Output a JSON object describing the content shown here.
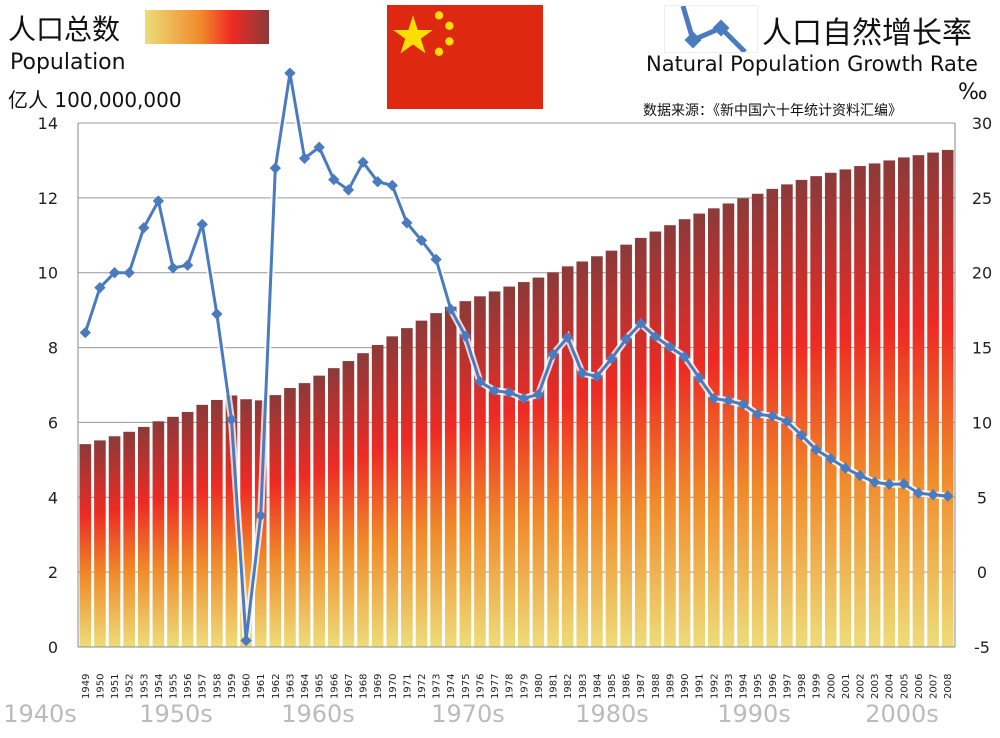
{
  "header": {
    "title_left": "人口总数",
    "population_label": "Population",
    "unit_left": "亿人 100,000,000",
    "title_right": "人口自然增长率",
    "growth_label": "Natural Population Growth Rate",
    "unit_right": "‰",
    "source": "数据来源：《新中国六十年统计资料汇编》",
    "flag_icon": "china-flag"
  },
  "colors": {
    "bar_top": "#8b3a3a",
    "bar_mid": "#ee2a24",
    "bar_bottom": "#eedc7a",
    "line": "#4a7bbf",
    "flag_red": "#de2910",
    "flag_star": "#ffde00"
  },
  "chart_data": {
    "type": "bar+line",
    "categories": [
      "1949",
      "1950",
      "1951",
      "1952",
      "1953",
      "1954",
      "1955",
      "1956",
      "1957",
      "1958",
      "1959",
      "1960",
      "1961",
      "1962",
      "1963",
      "1964",
      "1965",
      "1966",
      "1967",
      "1968",
      "1969",
      "1970",
      "1971",
      "1972",
      "1973",
      "1974",
      "1975",
      "1976",
      "1977",
      "1978",
      "1979",
      "1980",
      "1981",
      "1982",
      "1983",
      "1984",
      "1985",
      "1986",
      "1987",
      "1988",
      "1989",
      "1990",
      "1991",
      "1992",
      "1993",
      "1994",
      "1995",
      "1996",
      "1997",
      "1998",
      "1999",
      "2000",
      "2001",
      "2002",
      "2003",
      "2004",
      "2005",
      "2006",
      "2007",
      "2008"
    ],
    "decades": [
      "1940s",
      "1950s",
      "1960s",
      "1970s",
      "1980s",
      "1990s",
      "2000s"
    ],
    "series": [
      {
        "name": "Population",
        "axis": "left",
        "type": "bar",
        "values": [
          5.42,
          5.52,
          5.63,
          5.75,
          5.88,
          6.03,
          6.15,
          6.28,
          6.47,
          6.6,
          6.72,
          6.62,
          6.59,
          6.73,
          6.92,
          7.05,
          7.25,
          7.45,
          7.64,
          7.85,
          8.07,
          8.3,
          8.52,
          8.72,
          8.92,
          9.09,
          9.24,
          9.37,
          9.5,
          9.63,
          9.75,
          9.87,
          10.01,
          10.17,
          10.3,
          10.44,
          10.59,
          10.75,
          10.93,
          11.1,
          11.27,
          11.43,
          11.58,
          11.72,
          11.85,
          11.99,
          12.11,
          12.24,
          12.36,
          12.48,
          12.58,
          12.67,
          12.76,
          12.85,
          12.92,
          13.0,
          13.08,
          13.14,
          13.21,
          13.28
        ]
      },
      {
        "name": "Natural Population Growth Rate",
        "axis": "right",
        "type": "line",
        "values": [
          16.0,
          19.0,
          20.0,
          20.0,
          23.0,
          24.79,
          20.32,
          20.5,
          23.23,
          17.24,
          10.19,
          -4.57,
          3.78,
          26.99,
          33.33,
          27.64,
          28.38,
          26.22,
          25.53,
          27.38,
          26.08,
          25.83,
          23.33,
          22.16,
          20.89,
          17.57,
          15.77,
          12.72,
          12.12,
          12.0,
          11.61,
          11.87,
          14.55,
          15.68,
          13.29,
          13.08,
          14.26,
          15.57,
          16.61,
          15.73,
          15.04,
          14.39,
          12.98,
          11.6,
          11.45,
          11.21,
          10.55,
          10.42,
          10.06,
          9.14,
          8.18,
          7.58,
          6.95,
          6.45,
          6.01,
          5.87,
          5.89,
          5.28,
          5.17,
          5.08
        ]
      }
    ],
    "y_left": {
      "lim": [
        0,
        14
      ],
      "ticks": [
        "0",
        "2",
        "4",
        "6",
        "8",
        "10",
        "12",
        "14"
      ]
    },
    "y_right": {
      "lim": [
        -5,
        30
      ],
      "ticks": [
        "-5",
        "0",
        "5",
        "10",
        "15",
        "20",
        "25",
        "30"
      ]
    },
    "grid": true,
    "legend": "top"
  }
}
